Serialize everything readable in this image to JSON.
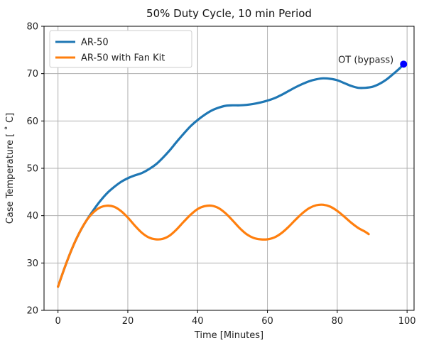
{
  "chart_data": {
    "type": "line",
    "title": "50% Duty Cycle, 10 min Period",
    "xlabel": "Time [Minutes]",
    "ylabel": "Case Temperature [ ˚ C]",
    "xlim": [
      -4,
      102
    ],
    "ylim": [
      20,
      80
    ],
    "xticks": [
      0,
      20,
      40,
      60,
      80,
      100
    ],
    "yticks": [
      20,
      30,
      40,
      50,
      60,
      70,
      80
    ],
    "grid": true,
    "legend_position": "top-left",
    "series": [
      {
        "name": "AR-50",
        "color": "#1f77b4",
        "x": [
          0,
          2,
          4,
          6,
          8,
          10,
          12,
          14,
          16,
          18,
          20,
          22,
          24,
          26,
          28,
          30,
          32,
          34,
          36,
          38,
          40,
          42,
          44,
          46,
          48,
          50,
          52,
          54,
          56,
          58,
          60,
          62,
          64,
          66,
          68,
          70,
          72,
          74,
          76,
          78,
          80,
          82,
          84,
          86,
          88,
          90,
          92,
          94,
          96,
          98,
          99
        ],
        "y": [
          25,
          29.2,
          33,
          36.2,
          38.8,
          41,
          43,
          44.7,
          46,
          47.1,
          47.9,
          48.5,
          49,
          49.8,
          50.8,
          52.2,
          53.8,
          55.6,
          57.3,
          58.9,
          60.2,
          61.3,
          62.2,
          62.8,
          63.2,
          63.3,
          63.3,
          63.4,
          63.6,
          63.9,
          64.3,
          64.8,
          65.5,
          66.3,
          67.1,
          67.8,
          68.4,
          68.8,
          69,
          68.9,
          68.6,
          68,
          67.4,
          67,
          67,
          67.2,
          67.8,
          68.7,
          69.9,
          71.2,
          72
        ]
      },
      {
        "name": "AR-50 with Fan Kit",
        "color": "#ff7f0e",
        "x": [
          0,
          2,
          4,
          6,
          8,
          10,
          12,
          14,
          16,
          18,
          20,
          22,
          24,
          26,
          28,
          30,
          32,
          34,
          36,
          38,
          40,
          42,
          44,
          46,
          48,
          50,
          52,
          54,
          56,
          58,
          60,
          62,
          64,
          66,
          68,
          70,
          72,
          74,
          76,
          78,
          80,
          82,
          84,
          86,
          88,
          89
        ],
        "y": [
          25,
          29.2,
          33,
          36.2,
          38.8,
          40.6,
          41.7,
          42.1,
          41.9,
          41,
          39.6,
          37.9,
          36.4,
          35.4,
          35,
          35.1,
          35.8,
          37.1,
          38.7,
          40.2,
          41.4,
          42,
          42.1,
          41.6,
          40.5,
          39,
          37.4,
          36.1,
          35.3,
          35,
          35,
          35.4,
          36.3,
          37.6,
          39.1,
          40.5,
          41.6,
          42.2,
          42.3,
          41.9,
          41,
          39.8,
          38.5,
          37.4,
          36.6,
          36.1
        ]
      }
    ],
    "point_annotation": {
      "label": "OT (bypass)",
      "x": 99,
      "y": 72,
      "color": "#0000ff"
    }
  }
}
